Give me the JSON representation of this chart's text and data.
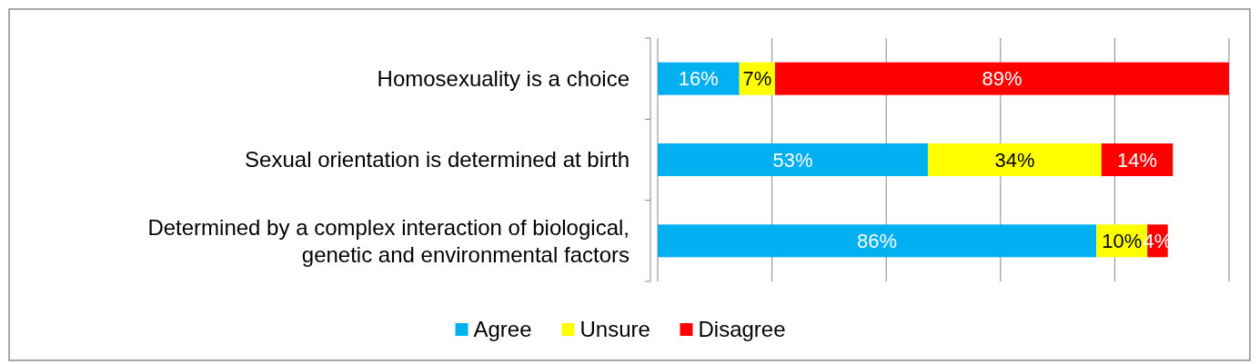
{
  "chart_data": {
    "type": "bar",
    "orientation": "horizontal",
    "stacked": true,
    "categories": [
      "Homosexuality is a choice",
      "Sexual orientation is determined at birth",
      "Determined by a complex interaction of biological, genetic and environmental factors"
    ],
    "series": [
      {
        "name": "Agree",
        "color": "#00b0f0",
        "values": [
          16,
          53,
          86
        ],
        "value_labels": [
          "16%",
          "53%",
          "86%"
        ]
      },
      {
        "name": "Unsure",
        "color": "#ffff00",
        "values": [
          7,
          34,
          10
        ],
        "value_labels": [
          "7%",
          "34%",
          "10%"
        ]
      },
      {
        "name": "Disagree",
        "color": "#ff0000",
        "values": [
          89,
          14,
          4
        ],
        "value_labels": [
          "89%",
          "14%",
          "4%"
        ]
      }
    ],
    "xlim": [
      0,
      112
    ],
    "xticks": [
      {
        "value": 0,
        "label": null
      },
      {
        "value": 22.4,
        "label": null
      },
      {
        "value": 44.8,
        "label": null
      },
      {
        "value": 67.2,
        "label": null
      },
      {
        "value": 89.6,
        "label": null
      },
      {
        "value": 112,
        "label": null
      }
    ],
    "tick_labels": "y",
    "grid": "x",
    "legend": "bottom"
  }
}
